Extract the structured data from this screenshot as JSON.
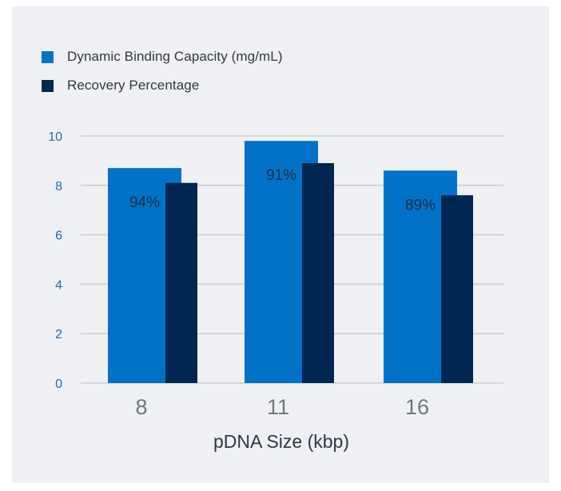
{
  "chart_data": {
    "type": "bar",
    "categories": [
      "8",
      "11",
      "16"
    ],
    "series": [
      {
        "name": "Dynamic Binding Capacity (mg/mL)",
        "values": [
          8.7,
          9.8,
          8.6
        ],
        "color": "#0073c8"
      },
      {
        "name": "Recovery Percentage",
        "values": [
          8.1,
          8.9,
          7.6
        ],
        "color": "#002652"
      }
    ],
    "data_labels": [
      "94%",
      "91%",
      "89%"
    ],
    "xlabel": "pDNA Size (kbp)",
    "ylabel": "",
    "ylim": [
      0,
      10
    ],
    "yticks": [
      0,
      2,
      4,
      6,
      8,
      10
    ],
    "grid": true,
    "legend_position": "top-left"
  },
  "legend": {
    "items": [
      {
        "label": "Dynamic Binding Capacity (mg/mL)",
        "color": "#0073c8"
      },
      {
        "label": "Recovery Percentage",
        "color": "#002652"
      }
    ]
  },
  "colors": {
    "background": "#eef0f3",
    "grid": "#c8ccd1",
    "tick_label": "#1f6fae"
  }
}
